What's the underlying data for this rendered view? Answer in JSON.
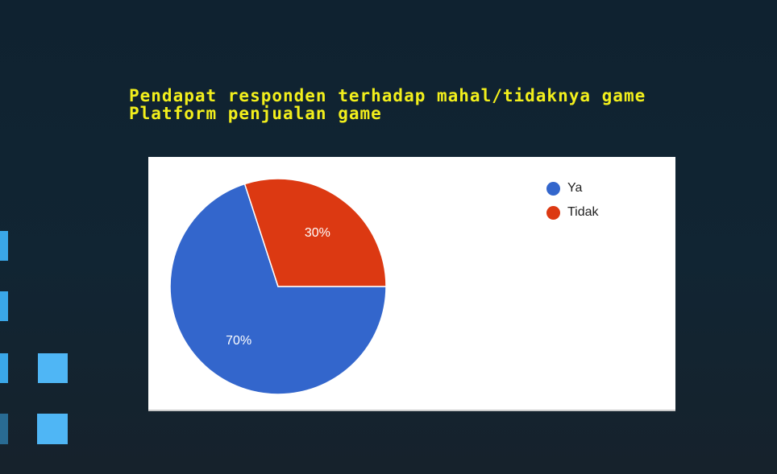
{
  "slide": {
    "title": "Pendapat responden terhadap mahal/tidaknya game Platform penjualan game"
  },
  "chart_data": {
    "type": "pie",
    "title": "",
    "categories": [
      "Ya",
      "Tidak"
    ],
    "values": [
      70,
      30
    ],
    "data_labels": [
      "70%",
      "30%"
    ],
    "colors": [
      "#3366cc",
      "#dc3912"
    ],
    "legend_position": "right"
  }
}
